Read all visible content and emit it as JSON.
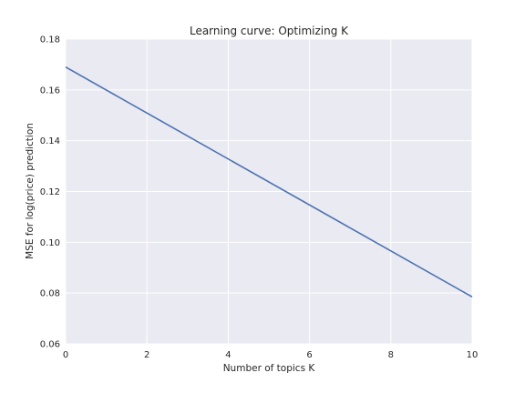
{
  "chart_data": {
    "type": "line",
    "title": "Learning curve: Optimizing K",
    "xlabel": "Number of topics K",
    "ylabel": "MSE for log(price) prediction",
    "xlim": [
      0,
      10
    ],
    "ylim": [
      0.06,
      0.18
    ],
    "x_ticks": [
      0,
      2,
      4,
      6,
      8,
      10
    ],
    "y_ticks": [
      0.06,
      0.08,
      0.1,
      0.12,
      0.14,
      0.16,
      0.18
    ],
    "x_tick_labels": [
      "0",
      "2",
      "4",
      "6",
      "8",
      "10"
    ],
    "y_tick_labels": [
      "0.06",
      "0.08",
      "0.10",
      "0.12",
      "0.14",
      "0.16",
      "0.18"
    ],
    "grid": true,
    "series": [
      {
        "color": "#4c72b0",
        "x": [
          0,
          10
        ],
        "y": [
          0.169,
          0.0785
        ]
      }
    ],
    "colors": {
      "plot_background": "#eaeaf2",
      "grid": "#ffffff",
      "text": "#262626"
    }
  }
}
